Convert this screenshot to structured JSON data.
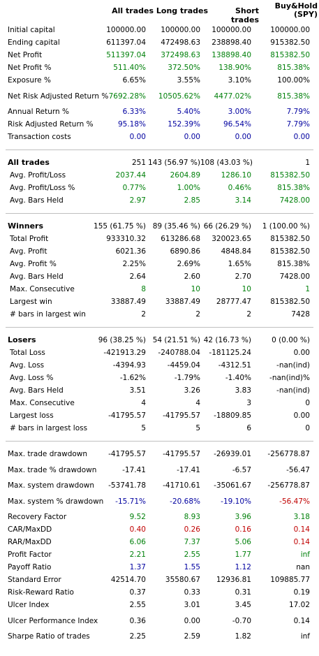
{
  "header": {
    "all": "All trades",
    "long": "Long trades",
    "short": "Short trades",
    "bh1": "Buy&Hold",
    "bh2": "(SPY)"
  },
  "sections": [
    {
      "title": "",
      "rows": [
        {
          "label": "Initial capital",
          "values": [
            "100000.00",
            "100000.00",
            "100000.00",
            "100000.00"
          ],
          "color": ""
        },
        {
          "label": "Ending capital",
          "values": [
            "611397.04",
            "472498.63",
            "238898.40",
            "915382.50"
          ],
          "color": ""
        },
        {
          "label": "Net Profit",
          "values": [
            "511397.04",
            "372498.63",
            "138898.40",
            "815382.50"
          ],
          "color": "green"
        },
        {
          "label": "Net Profit %",
          "values": [
            "511.40%",
            "372.50%",
            "138.90%",
            "815.38%"
          ],
          "color": "green"
        },
        {
          "label": "Exposure %",
          "values": [
            "6.65%",
            "3.55%",
            "3.10%",
            "100.00%"
          ],
          "color": ""
        },
        {
          "label": "Net Risk Adjusted Return %",
          "values": [
            "7692.28%",
            "10505.62%",
            "4477.02%",
            "815.38%"
          ],
          "color": "green",
          "tall": true
        },
        {
          "label": "Annual Return %",
          "values": [
            "6.33%",
            "5.40%",
            "3.00%",
            "7.79%"
          ],
          "color": "blue"
        },
        {
          "label": "Risk Adjusted Return %",
          "values": [
            "95.18%",
            "152.39%",
            "96.54%",
            "7.79%"
          ],
          "color": "blue"
        },
        {
          "label": "Transaction costs",
          "values": [
            "0.00",
            "0.00",
            "0.00",
            "0.00"
          ],
          "color": "blue"
        }
      ]
    },
    {
      "title": "All trades",
      "title_values": [
        "251",
        "143 (56.97 %)",
        "108 (43.03 %)",
        "1"
      ],
      "rows": [
        {
          "label": "Avg. Profit/Loss",
          "values": [
            "2037.44",
            "2604.89",
            "1286.10",
            "815382.50"
          ],
          "color": "green"
        },
        {
          "label": "Avg. Profit/Loss %",
          "values": [
            "0.77%",
            "1.00%",
            "0.46%",
            "815.38%"
          ],
          "color": "green"
        },
        {
          "label": "Avg. Bars Held",
          "values": [
            "2.97",
            "2.85",
            "3.14",
            "7428.00"
          ],
          "color": "green"
        }
      ]
    },
    {
      "title": "Winners",
      "title_values": [
        "155 (61.75 %)",
        "89 (35.46 %)",
        "66 (26.29 %)",
        "1 (100.00 %)"
      ],
      "rows": [
        {
          "label": "Total Profit",
          "values": [
            "933310.32",
            "613286.68",
            "320023.65",
            "815382.50"
          ],
          "color": ""
        },
        {
          "label": "Avg. Profit",
          "values": [
            "6021.36",
            "6890.86",
            "4848.84",
            "815382.50"
          ],
          "color": ""
        },
        {
          "label": "Avg. Profit %",
          "values": [
            "2.25%",
            "2.69%",
            "1.65%",
            "815.38%"
          ],
          "color": ""
        },
        {
          "label": "Avg. Bars Held",
          "values": [
            "2.64",
            "2.60",
            "2.70",
            "7428.00"
          ],
          "color": ""
        },
        {
          "label": "Max. Consecutive",
          "values": [
            "8",
            "10",
            "10",
            "1"
          ],
          "color": "green"
        },
        {
          "label": "Largest win",
          "values": [
            "33887.49",
            "33887.49",
            "28777.47",
            "815382.50"
          ],
          "color": ""
        },
        {
          "label": "# bars in largest win",
          "values": [
            "2",
            "2",
            "2",
            "7428"
          ],
          "color": ""
        }
      ]
    },
    {
      "title": "Losers",
      "title_values": [
        "96 (38.25 %)",
        "54 (21.51 %)",
        "42 (16.73 %)",
        "0 (0.00 %)"
      ],
      "rows": [
        {
          "label": "Total Loss",
          "values": [
            "-421913.29",
            "-240788.04",
            "-181125.24",
            "0.00"
          ],
          "color": ""
        },
        {
          "label": "Avg. Loss",
          "values": [
            "-4394.93",
            "-4459.04",
            "-4312.51",
            "-nan(ind)"
          ],
          "color": ""
        },
        {
          "label": "Avg. Loss %",
          "values": [
            "-1.62%",
            "-1.79%",
            "-1.40%",
            "-nan(ind)%"
          ],
          "color": ""
        },
        {
          "label": "Avg. Bars Held",
          "values": [
            "3.51",
            "3.26",
            "3.83",
            "-nan(ind)"
          ],
          "color": ""
        },
        {
          "label": "Max. Consecutive",
          "values": [
            "4",
            "4",
            "3",
            "0"
          ],
          "color": ""
        },
        {
          "label": "Largest loss",
          "values": [
            "-41795.57",
            "-41795.57",
            "-18809.85",
            "0.00"
          ],
          "color": ""
        },
        {
          "label": "# bars in largest loss",
          "values": [
            "5",
            "5",
            "6",
            "0"
          ],
          "color": ""
        }
      ]
    },
    {
      "title": "",
      "rows": [
        {
          "label": "Max. trade drawdown",
          "values": [
            "-41795.57",
            "-41795.57",
            "-26939.01",
            "-256778.87"
          ],
          "color": ""
        },
        {
          "label": "Max. trade % drawdown",
          "values": [
            "-17.41",
            "-17.41",
            "-6.57",
            "-56.47"
          ],
          "color": "",
          "tall": true
        },
        {
          "label": "Max. system drawdown",
          "values": [
            "-53741.78",
            "-41710.61",
            "-35061.67",
            "-256778.87"
          ],
          "color": ""
        },
        {
          "label": "Max. system % drawdown",
          "values": [
            "-15.71%",
            "-20.68%",
            "-19.10%",
            "-56.47%"
          ],
          "color": "blue",
          "tall": true,
          "last_color": "red"
        },
        {
          "label": "Recovery Factor",
          "values": [
            "9.52",
            "8.93",
            "3.96",
            "3.18"
          ],
          "color": "green"
        },
        {
          "label": "CAR/MaxDD",
          "values": [
            "0.40",
            "0.26",
            "0.16",
            "0.14"
          ],
          "color": "red"
        },
        {
          "label": "RAR/MaxDD",
          "values": [
            "6.06",
            "7.37",
            "5.06",
            "0.14"
          ],
          "color": "green",
          "last_color": "red"
        },
        {
          "label": "Profit Factor",
          "values": [
            "2.21",
            "2.55",
            "1.77",
            "inf"
          ],
          "color": "green"
        },
        {
          "label": "Payoff Ratio",
          "values": [
            "1.37",
            "1.55",
            "1.12",
            "nan"
          ],
          "color": "blue",
          "last_color": ""
        },
        {
          "label": "Standard Error",
          "values": [
            "42514.70",
            "35580.67",
            "12936.81",
            "109885.77"
          ],
          "color": ""
        },
        {
          "label": "Risk-Reward Ratio",
          "values": [
            "0.37",
            "0.33",
            "0.31",
            "0.19"
          ],
          "color": ""
        },
        {
          "label": "Ulcer Index",
          "values": [
            "2.55",
            "3.01",
            "3.45",
            "17.02"
          ],
          "color": ""
        },
        {
          "label": "Ulcer Performance Index",
          "values": [
            "0.36",
            "0.00",
            "-0.70",
            "0.14"
          ],
          "color": "",
          "tall": true
        },
        {
          "label": "Sharpe Ratio of trades",
          "values": [
            "2.25",
            "2.59",
            "1.82",
            "inf"
          ],
          "color": ""
        }
      ]
    }
  ]
}
